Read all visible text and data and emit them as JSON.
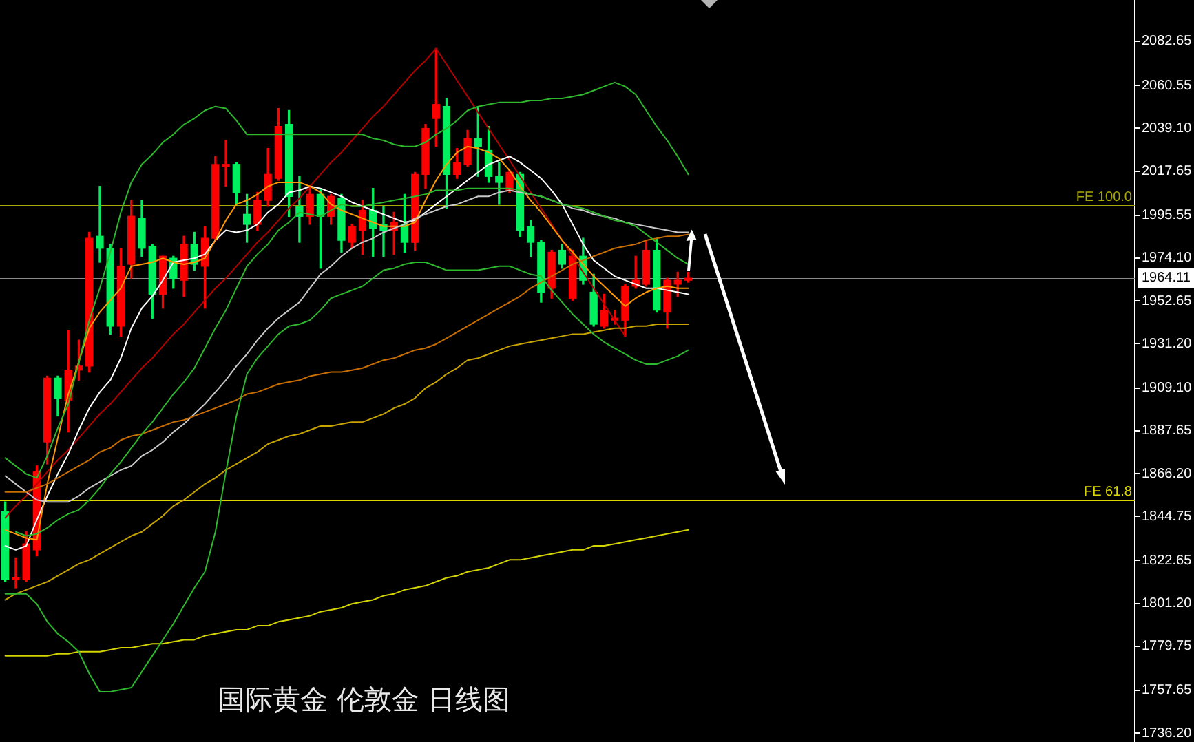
{
  "chart_data": {
    "type": "candlestick",
    "title": "国际黄金 伦敦金 日线图",
    "categories": [
      null,
      null,
      null,
      null,
      null,
      null,
      null,
      null,
      null,
      null,
      null,
      null,
      null,
      null,
      null,
      null,
      null,
      null,
      null,
      null,
      null,
      null,
      null,
      null,
      null,
      null,
      null,
      null,
      null,
      null,
      null,
      null,
      null,
      null,
      null,
      null,
      null,
      null,
      null,
      null,
      null,
      null,
      null,
      null,
      null,
      null,
      null,
      null,
      null,
      null,
      null,
      null,
      null,
      null,
      null,
      null,
      null,
      null,
      null,
      null,
      null,
      null,
      null,
      null,
      null,
      null,
      null,
      null,
      null,
      null,
      null,
      null,
      null,
      null,
      null,
      null,
      null,
      null,
      null,
      null,
      null,
      null,
      null,
      null,
      null,
      null,
      null,
      null,
      null,
      null,
      null,
      null,
      null,
      null,
      null,
      null,
      null,
      null,
      null,
      null,
      null,
      null,
      null,
      null,
      null,
      null,
      null,
      null
    ],
    "ohlc": [
      [
        1847,
        1852,
        1812,
        1813
      ],
      [
        1813,
        1824,
        1809,
        1814
      ],
      [
        1813,
        1837,
        1812,
        1831
      ],
      [
        1828,
        1870,
        1825,
        1867
      ],
      [
        1882,
        1915,
        1871,
        1914
      ],
      [
        1914,
        1915,
        1895,
        1904
      ],
      [
        1903,
        1938,
        1887,
        1918
      ],
      [
        1918,
        1933,
        1913,
        1920
      ],
      [
        1920,
        1987,
        1917,
        1984
      ],
      [
        1985,
        2010,
        1972,
        1979
      ],
      [
        1979,
        1981,
        1936,
        1940
      ],
      [
        1940,
        1979,
        1935,
        1970
      ],
      [
        1971,
        2003,
        1964,
        1995
      ],
      [
        1994,
        2003,
        1975,
        1979
      ],
      [
        1980,
        1981,
        1944,
        1956
      ],
      [
        1956,
        1975,
        1949,
        1975
      ],
      [
        1974,
        1975,
        1959,
        1964
      ],
      [
        1963,
        1985,
        1955,
        1981
      ],
      [
        1981,
        1987,
        1968,
        1971
      ],
      [
        1970,
        1990,
        1949,
        1984
      ],
      [
        1984,
        2025,
        1983,
        2021
      ],
      [
        2020,
        2033,
        2010,
        2021
      ],
      [
        2021,
        2022,
        2001,
        2007
      ],
      [
        1996,
        2006,
        1982,
        1991
      ],
      [
        1991,
        2007,
        1988,
        2003
      ],
      [
        2003,
        2029,
        2000,
        2016
      ],
      [
        2014,
        2049,
        2013,
        2040
      ],
      [
        2041,
        2048,
        1995,
        2005
      ],
      [
        2000,
        2015,
        1982,
        1995
      ],
      [
        1995,
        2010,
        1991,
        2006
      ],
      [
        2006,
        2009,
        1969,
        1995
      ],
      [
        1995,
        2006,
        1991,
        2005
      ],
      [
        2004,
        2006,
        1977,
        1983
      ],
      [
        1982,
        1991,
        1979,
        1990
      ],
      [
        1988,
        2003,
        1976,
        1998
      ],
      [
        1998,
        2009,
        1975,
        1989
      ],
      [
        1991,
        2000,
        1975,
        1988
      ],
      [
        1988,
        1997,
        1976,
        1992
      ],
      [
        1991,
        2006,
        1977,
        1982
      ],
      [
        1982,
        2017,
        1978,
        2016
      ],
      [
        2016,
        2041,
        2009,
        2039
      ],
      [
        2044,
        2079,
        2030,
        2051
      ],
      [
        2050,
        2054,
        1999,
        2016
      ],
      [
        2016,
        2029,
        2014,
        2022
      ],
      [
        2021,
        2038,
        2020,
        2034
      ],
      [
        2034,
        2050,
        2015,
        2030
      ],
      [
        2028,
        2040,
        2012,
        2015
      ],
      [
        2015,
        2022,
        2001,
        2012
      ],
      [
        2008,
        2018,
        2007,
        2017
      ],
      [
        2016,
        2017,
        1985,
        1988
      ],
      [
        1990,
        1993,
        1975,
        1982
      ],
      [
        1982,
        1983,
        1952,
        1957
      ],
      [
        1959,
        1978,
        1954,
        1977
      ],
      [
        1978,
        1981,
        1969,
        1971
      ],
      [
        1954,
        1978,
        1953,
        1975
      ],
      [
        1975,
        1984,
        1961,
        1963
      ],
      [
        1957,
        1966,
        1940,
        1941
      ],
      [
        1940,
        1956,
        1939,
        1948
      ],
      [
        1943,
        1948,
        1941,
        1944
      ],
      [
        1943,
        1961,
        1935,
        1960
      ],
      [
        1960,
        1975,
        1959,
        1963
      ],
      [
        1961,
        1983,
        1960,
        1978
      ],
      [
        1978,
        1984,
        1947,
        1948
      ],
      [
        1947,
        1964,
        1939,
        1963
      ],
      [
        1961,
        1967,
        1955,
        1963
      ],
      [
        1963,
        1967,
        1962,
        1964
      ],
      null,
      null,
      null,
      null,
      null,
      null,
      null,
      null,
      null,
      null,
      null,
      null,
      null,
      null,
      null,
      null,
      null,
      null,
      null,
      null,
      null,
      null,
      null,
      null,
      null,
      null,
      null,
      null,
      null,
      null,
      null,
      null,
      null,
      null,
      null,
      null,
      null,
      null,
      null,
      null,
      null,
      null
    ],
    "colors": [
      "#00f060",
      "#ff0000",
      "#ff0000",
      "#ff0000",
      "#ff0000",
      "#00f060",
      "#ff0000",
      "#ff0000",
      "#ff0000",
      "#00f060",
      "#00f060",
      "#ff0000",
      "#ff0000",
      "#00f060",
      "#00f060",
      "#ff0000",
      "#00f060",
      "#ff0000",
      "#00f060",
      "#ff0000",
      "#ff0000",
      "#ff0000",
      "#00f060",
      "#00f060",
      "#ff0000",
      "#ff0000",
      "#ff0000",
      "#00f060",
      "#00f060",
      "#ff0000",
      "#00f060",
      "#ff0000",
      "#00f060",
      "#ff0000",
      "#ff0000",
      "#00f060",
      "#00f060",
      "#ff0000",
      "#00f060",
      "#ff0000",
      "#ff0000",
      "#ff0000",
      "#00f060",
      "#ff0000",
      "#ff0000",
      "#00f060",
      "#00f060",
      "#00f060",
      "#ff0000",
      "#00f060",
      "#00f060",
      "#00f060",
      "#ff0000",
      "#00f060",
      "#ff0000",
      "#00f060",
      "#00f060",
      "#ff0000",
      "#ff0000",
      "#ff0000",
      "#ff0000",
      "#ff0000",
      "#00f060",
      "#ff0000",
      "#ff0000",
      "#ff0000",
      null,
      null,
      null,
      null,
      null,
      null,
      null,
      null,
      null,
      null,
      null,
      null,
      null,
      null,
      null,
      null,
      null,
      null,
      null,
      null,
      null,
      null,
      null,
      null,
      null,
      null,
      null,
      null,
      null,
      null,
      null,
      null,
      null,
      null,
      null,
      null,
      null,
      null,
      null,
      null,
      null,
      null
    ],
    "series": [
      {
        "type": "line",
        "color": "#2db82d",
        "values": [
          1874,
          1870,
          1866,
          1864,
          1875,
          1889,
          1901,
          1922,
          1943,
          1959,
          1977,
          1997,
          2012,
          2021,
          2026,
          2032,
          2036,
          2041,
          2044,
          2048,
          2050,
          2049,
          2043,
          2036,
          2036,
          2036,
          2036,
          2036,
          2036,
          2036,
          2036,
          2036,
          2036,
          2036,
          2036,
          2034,
          2033,
          2031,
          2030,
          2030,
          2032,
          2036,
          2039,
          2043,
          2048,
          2050,
          2051,
          2052,
          2052,
          2052,
          2053,
          2053,
          2054,
          2054,
          2055,
          2056,
          2058,
          2060,
          2062,
          2060,
          2056,
          2048,
          2040,
          2033,
          2025,
          2016,
          null,
          null,
          null,
          null,
          null,
          null,
          null,
          null,
          null,
          null,
          null,
          null,
          null,
          null,
          null,
          null,
          null,
          null,
          null,
          null,
          null,
          null,
          null,
          null,
          null,
          null,
          null,
          null,
          null,
          null,
          null,
          null,
          null,
          null,
          null,
          null,
          null,
          null,
          null,
          null,
          null,
          null
        ]
      },
      {
        "type": "line",
        "color": "#2db82d",
        "values": [
          null,
          1837,
          1835,
          1836,
          1839,
          1843,
          1846,
          1848,
          1853,
          1859,
          1866,
          1872,
          1879,
          1886,
          1892,
          1899,
          1906,
          1912,
          1919,
          1929,
          1939,
          1948,
          1959,
          1970,
          1976,
          1981,
          1988,
          1992,
          1997,
          1996,
          1995,
          1998,
          2001,
          2000,
          2000,
          2001,
          2002,
          2003,
          2004,
          2005,
          2006,
          2008,
          2008,
          2008,
          2009,
          2009,
          2009,
          2009,
          2009,
          2008,
          2006,
          2005,
          2003,
          2001,
          2000,
          1999,
          1997,
          1995,
          1993,
          1992,
          1990,
          1986,
          1982,
          1978,
          1974,
          1971,
          null,
          null,
          null,
          null,
          null,
          null,
          null,
          null,
          null,
          null,
          null,
          null,
          null,
          null,
          null,
          null,
          null,
          null,
          null,
          null,
          null,
          null,
          null,
          null,
          null,
          null,
          null,
          null,
          null,
          null,
          null,
          null,
          null,
          null,
          null,
          null,
          null,
          null,
          null,
          null,
          null,
          null
        ]
      },
      {
        "type": "line",
        "color": "#2db82d",
        "values": [
          1806,
          1806,
          1806,
          1801,
          1792,
          1786,
          1782,
          1777,
          1766,
          1757,
          1757,
          1758,
          1759,
          1767,
          1775,
          1783,
          1791,
          1800,
          1809,
          1817,
          1837,
          1867,
          1895,
          1916,
          1924,
          1930,
          1936,
          1940,
          1941,
          1943,
          1948,
          1954,
          1956,
          1958,
          1960,
          1964,
          1968,
          1969,
          1971,
          1972,
          1972,
          1970,
          1968,
          1968,
          1968,
          1968,
          1969,
          1970,
          1970,
          1968,
          1966,
          1965,
          1958,
          1952,
          1946,
          1941,
          1936,
          1932,
          1929,
          1926,
          1923,
          1921,
          1921,
          1923,
          1925,
          1928,
          null,
          null,
          null,
          null,
          null,
          null,
          null,
          null,
          null,
          null,
          null,
          null,
          null,
          null,
          null,
          null,
          null,
          null,
          null,
          null,
          null,
          null,
          null,
          null,
          null,
          null,
          null,
          null,
          null,
          null,
          null,
          null,
          null,
          null,
          null,
          null,
          null,
          null,
          null,
          null,
          null,
          null
        ]
      },
      {
        "type": "line",
        "color": "#c8a400",
        "values": [
          1803,
          1806,
          1808,
          1810,
          1812,
          1815,
          1818,
          1821,
          1823,
          1826,
          1829,
          1832,
          1835,
          1837,
          1841,
          1845,
          1850,
          1853,
          1857,
          1861,
          1864,
          1868,
          1871,
          1874,
          1877,
          1881,
          1883,
          1885,
          1886,
          1888,
          1890,
          1890,
          1891,
          1892,
          1892,
          1894,
          1896,
          1899,
          1901,
          1904,
          1909,
          1912,
          1916,
          1919,
          1923,
          1924,
          1926,
          1928,
          1930,
          1931,
          1932,
          1933,
          1934,
          1935,
          1936,
          1936,
          1937,
          1938,
          1939,
          1939,
          1940,
          1940,
          1941,
          1941,
          1941,
          1941,
          null,
          null,
          null,
          null,
          null,
          null,
          null,
          null,
          null,
          null,
          null,
          null,
          null,
          null,
          null,
          null,
          null,
          null,
          null,
          null,
          null,
          null,
          null,
          null,
          null,
          null,
          null,
          null,
          null,
          null,
          null,
          null,
          null,
          null,
          null,
          null,
          null,
          null,
          null,
          null,
          null,
          null
        ]
      },
      {
        "type": "line",
        "color": "#d4d400",
        "values": [
          1775,
          1775,
          1775,
          1775,
          1775,
          1776,
          1776,
          1777,
          1777,
          1777,
          1778,
          1779,
          1779,
          1780,
          1781,
          1781,
          1782,
          1783,
          1783,
          1785,
          1786,
          1787,
          1788,
          1788,
          1790,
          1790,
          1792,
          1793,
          1794,
          1795,
          1797,
          1798,
          1799,
          1801,
          1802,
          1803,
          1805,
          1806,
          1808,
          1809,
          1810,
          1812,
          1814,
          1815,
          1817,
          1818,
          1819,
          1821,
          1823,
          1823,
          1824,
          1825,
          1826,
          1827,
          1828,
          1828,
          1830,
          1830,
          1831,
          1832,
          1833,
          1834,
          1835,
          1836,
          1837,
          1838,
          null,
          null,
          null,
          null,
          null,
          null,
          null,
          null,
          null,
          null,
          null,
          null,
          null,
          null,
          null,
          null,
          null,
          null,
          null,
          null,
          null,
          null,
          null,
          null,
          null,
          null,
          null,
          null,
          null,
          null,
          null,
          null,
          null,
          null,
          null,
          null,
          null,
          null,
          null,
          null,
          null,
          null
        ]
      },
      {
        "type": "line",
        "color": "#c86e00",
        "values": [
          1857,
          1857,
          1857,
          1859,
          1861,
          1864,
          1867,
          1870,
          1873,
          1877,
          1879,
          1883,
          1885,
          1886,
          1888,
          1890,
          1892,
          1893,
          1895,
          1897,
          1899,
          1901,
          1903,
          1906,
          1907,
          1909,
          1911,
          1912,
          1913,
          1915,
          1916,
          1917,
          1917,
          1918,
          1919,
          1921,
          1923,
          1924,
          1926,
          1928,
          1929,
          1931,
          1934,
          1937,
          1940,
          1943,
          1946,
          1949,
          1952,
          1955,
          1959,
          1962,
          1965,
          1968,
          1971,
          1973,
          1975,
          1977,
          1979,
          1980,
          1981,
          1983,
          1984,
          1985,
          1985,
          1986,
          null,
          null,
          null,
          null,
          null,
          null,
          null,
          null,
          null,
          null,
          null,
          null,
          null,
          null,
          null,
          null,
          null,
          null,
          null,
          null,
          null,
          null,
          null,
          null,
          null,
          null,
          null,
          null,
          null,
          null,
          null,
          null,
          null,
          null,
          null,
          null,
          null,
          null,
          null,
          null,
          null,
          null
        ]
      },
      {
        "type": "line",
        "color": "#c8c8c8",
        "values": [
          1865,
          1861,
          1857,
          1853,
          1852,
          1852,
          1852,
          1855,
          1859,
          1862,
          1865,
          1868,
          1870,
          1875,
          1878,
          1882,
          1887,
          1891,
          1896,
          1901,
          1907,
          1913,
          1920,
          1926,
          1933,
          1939,
          1944,
          1948,
          1952,
          1959,
          1966,
          1970,
          1975,
          1979,
          1982,
          1984,
          1987,
          1989,
          1991,
          1994,
          1996,
          1998,
          2000,
          2001,
          2003,
          2005,
          2005,
          2007,
          2008,
          2007,
          2006,
          2005,
          2003,
          2001,
          1999,
          1998,
          1996,
          1995,
          1994,
          1992,
          1991,
          1990,
          1989,
          1988,
          1987,
          1987,
          null,
          null,
          null,
          null,
          null,
          null,
          null,
          null,
          null,
          null,
          null,
          null,
          null,
          null,
          null,
          null,
          null,
          null,
          null,
          null,
          null,
          null,
          null,
          null,
          null,
          null,
          null,
          null,
          null,
          null,
          null,
          null,
          null,
          null,
          null,
          null,
          null,
          null,
          null,
          null,
          null,
          null
        ]
      },
      {
        "type": "line",
        "color": "#ff9a00",
        "values": [
          1838,
          1836,
          1834,
          1833,
          1861,
          1884,
          1906,
          1922,
          1939,
          1947,
          1953,
          1959,
          1970,
          1971,
          1972,
          1974,
          1972,
          1971,
          1972,
          1974,
          1983,
          1993,
          2001,
          2003,
          2006,
          2010,
          2012,
          2012,
          2012,
          2010,
          2007,
          2001,
          1998,
          1996,
          1994,
          1992,
          1990,
          1990,
          1990,
          1992,
          2003,
          2013,
          2021,
          2027,
          2030,
          2029,
          2027,
          2024,
          2018,
          2010,
          2003,
          1997,
          1990,
          1983,
          1977,
          1971,
          1965,
          1960,
          1955,
          1950,
          1954,
          1957,
          1959,
          1960,
          1959,
          1959,
          null,
          null,
          null,
          null,
          null,
          null,
          null,
          null,
          null,
          null,
          null,
          null,
          null,
          null,
          null,
          null,
          null,
          null,
          null,
          null,
          null,
          null,
          null,
          null,
          null,
          null,
          null,
          null,
          null,
          null,
          null,
          null,
          null,
          null,
          null,
          null,
          null,
          null,
          null,
          null,
          null,
          null
        ]
      },
      {
        "type": "line",
        "color": "#ffffff",
        "values": [
          1830,
          1828,
          1830,
          1843,
          1855,
          1866,
          1876,
          1888,
          1899,
          1907,
          1913,
          1924,
          1939,
          1949,
          1955,
          1963,
          1972,
          1973,
          1974,
          1976,
          1983,
          1988,
          1987,
          1988,
          1991,
          1997,
          2001,
          2007,
          2008,
          2010,
          2009,
          2007,
          2005,
          2002,
          2000,
          1998,
          1996,
          1994,
          1992,
          1993,
          1997,
          2001,
          2005,
          2009,
          2013,
          2017,
          2021,
          2023,
          2025,
          2022,
          2018,
          2014,
          2008,
          2001,
          1991,
          1981,
          1973,
          1969,
          1965,
          1963,
          1961,
          1959,
          1959,
          1958,
          1957,
          1956,
          null,
          null,
          null,
          null,
          null,
          null,
          null,
          null,
          null,
          null,
          null,
          null,
          null,
          null,
          null,
          null,
          null,
          null,
          null,
          null,
          null,
          null,
          null,
          null,
          null,
          null,
          null,
          null,
          null,
          null,
          null,
          null,
          null,
          null,
          null,
          null,
          null,
          null,
          null,
          null,
          null,
          null
        ]
      },
      {
        "type": "line",
        "color": "#b40000",
        "values": [
          1844,
          1850,
          1855,
          1861,
          1867,
          1873,
          1878,
          1884,
          1890,
          1896,
          1901,
          1907,
          1913,
          1919,
          1924,
          1930,
          1936,
          1941,
          1947,
          1953,
          1959,
          1964,
          1970,
          1976,
          1982,
          1987,
          1993,
          1999,
          2004,
          2010,
          2016,
          2022,
          2027,
          2033,
          2039,
          2045,
          2050,
          2056,
          2062,
          2068,
          2073,
          2079,
          2071,
          2063,
          2055,
          2047,
          2039,
          2031,
          2023,
          2015,
          2007,
          1999,
          1991,
          1983,
          1975,
          1967,
          1959,
          1951,
          1943,
          1935,
          null,
          null,
          null,
          null,
          null,
          null,
          null,
          null,
          null,
          null,
          null,
          null,
          null,
          null,
          null,
          null,
          null,
          null,
          null,
          null,
          null,
          null,
          null,
          null,
          null,
          null,
          null,
          null,
          null,
          null,
          null,
          null,
          null,
          null,
          null,
          null,
          null,
          null,
          null,
          null,
          null,
          null,
          null,
          null,
          null,
          null,
          null,
          null
        ]
      }
    ],
    "ylim": [
      1731.8,
      2103.3
    ],
    "yticks": [
      2082.65,
      2060.55,
      {
        "value": 2039.1,
        "label": "2039.10"
      },
      2017.65,
      1995.55,
      {
        "value": 1974.1,
        "label": "1974.10"
      },
      1952.65,
      {
        "value": 1931.2,
        "label": "1931.20"
      },
      {
        "value": 1909.1,
        "label": "1909.10"
      },
      1887.65,
      {
        "value": 1866.2,
        "label": "1866.20"
      },
      1844.75,
      1822.65,
      {
        "value": 1801.2,
        "label": "1801.20"
      },
      1779.75,
      1757.65,
      {
        "value": 1736.2,
        "label": "1736.20"
      }
    ],
    "ref_lines": [
      {
        "axis": "y",
        "value": 1964.11,
        "label": "1964.11",
        "color": "#8c8c8c"
      },
      {
        "axis": "y",
        "value": 2000.6,
        "label": "FE 100.0",
        "color": "#a8a800"
      },
      {
        "axis": "y",
        "value": 1853.2,
        "label": "FE 61.8",
        "color": "#d8d800"
      }
    ],
    "grid": false,
    "legend": false,
    "tick_labels": "y",
    "marker": "none",
    "line_style": "solid"
  }
}
